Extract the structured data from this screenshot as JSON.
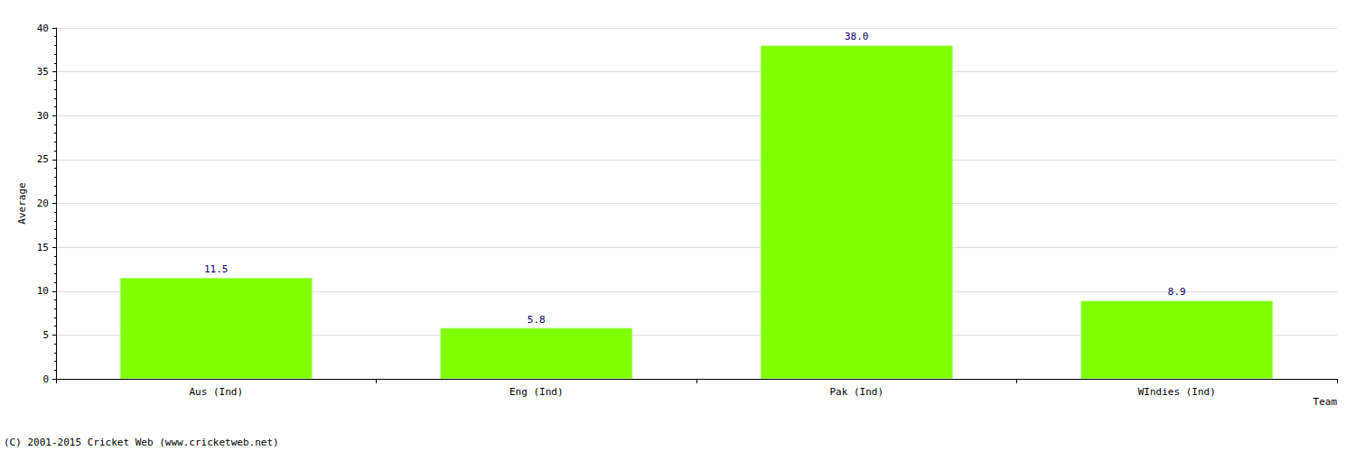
{
  "chart_data": {
    "type": "bar",
    "categories": [
      "Aus (Ind)",
      "Eng (Ind)",
      "Pak (Ind)",
      "WIndies (Ind)"
    ],
    "values": [
      11.5,
      5.8,
      38.0,
      8.9
    ],
    "value_labels": [
      "11.5",
      "5.8",
      "38.0",
      "8.9"
    ],
    "color": "#80ff00",
    "x_label": "Team",
    "y_label": "Average",
    "ylim": [
      0,
      40
    ],
    "yticks": [
      0,
      5,
      10,
      15,
      20,
      25,
      30,
      35,
      40
    ],
    "grid": true,
    "data_labels": true,
    "annotations": [
      "(C) 2001-2015 Cricket Web (www.cricketweb.net)"
    ]
  }
}
